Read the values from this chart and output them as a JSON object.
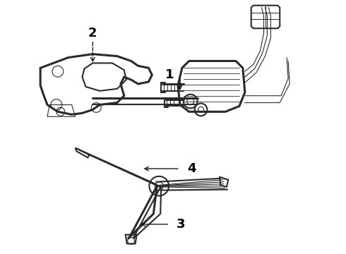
{
  "background_color": "#ffffff",
  "line_color": "#2a2a2a",
  "arrow_color": "#1a1a1a",
  "label_color": "#000000",
  "figsize": [
    4.9,
    3.6
  ],
  "dpi": 100,
  "lw_main": 1.5,
  "lw_thin": 0.8,
  "lw_thick": 2.2
}
